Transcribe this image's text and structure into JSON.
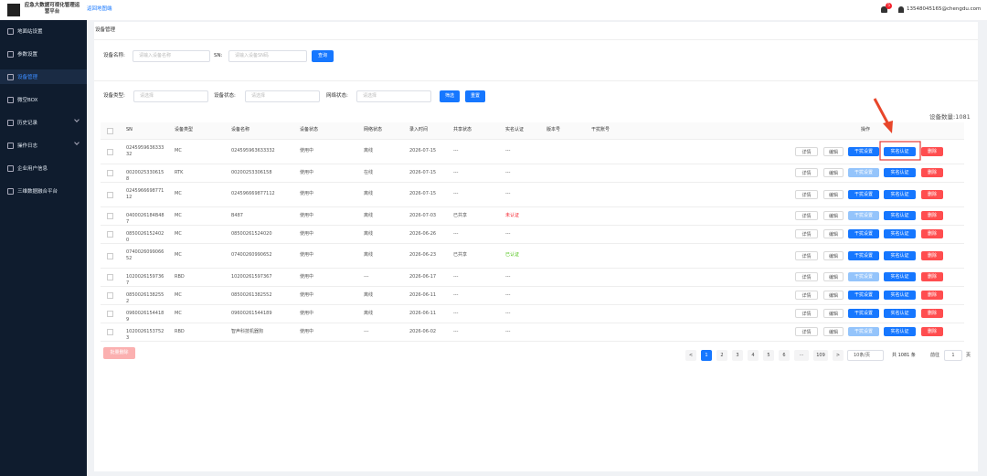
{
  "header": {
    "title": "应急大数据可视化管理运营平台",
    "back_link": "返回地图端",
    "notification_count": "5",
    "user_email": "13548045165@chengdu.com"
  },
  "sidebar": {
    "items": [
      "地面站设置",
      "参数设置",
      "设备管理",
      "微空BOX",
      "历史记录",
      "操作日志",
      "企业用户信息",
      "三维数据融合平台"
    ],
    "active": 2
  },
  "breadcrumb": "设备管理",
  "search": {
    "name_label": "设备名称:",
    "name_placeholder": "请输入设备名称",
    "sn_label": "SN:",
    "sn_placeholder": "请输入设备SN码",
    "button": "查询"
  },
  "filters": {
    "fields": [
      {
        "label": "设备类型:",
        "placeholder": "请选择"
      },
      {
        "label": "设备状态:",
        "placeholder": "请选择"
      },
      {
        "label": "网络状态:",
        "placeholder": "请选择"
      }
    ],
    "filter_button": "筛选",
    "reset_button": "重置"
  },
  "device_count": "设备数量:1081",
  "table": {
    "columns": [
      "SN",
      "设备类型",
      "设备名称",
      "设备状态",
      "网络状态",
      "录入时间",
      "共享状态",
      "实名认证",
      "版本号",
      "干扰账号",
      "操作"
    ],
    "actions": [
      "详情",
      "编辑",
      "干扰设置",
      "实名认证",
      "删除"
    ],
    "rows": [
      {
        "sn": "024595963633332",
        "type": "MC",
        "name": "024595963633332",
        "status": "使用中",
        "network": "离线",
        "created": "2026-07-15",
        "shared": "---",
        "auth": "---"
      },
      {
        "sn": "00200253306158",
        "type": "RTK",
        "name": "00200253306158",
        "status": "使用中",
        "network": "在线",
        "created": "2026-07-15",
        "shared": "---",
        "auth": "---",
        "jam_disabled": true
      },
      {
        "sn": "024596669877112",
        "type": "MC",
        "name": "024596669877112",
        "status": "使用中",
        "network": "离线",
        "created": "2026-07-15",
        "shared": "---",
        "auth": "---"
      },
      {
        "sn": "0400026184B487",
        "type": "MC",
        "name": "B487",
        "status": "使用中",
        "network": "离线",
        "created": "2026-07-03",
        "shared": "已共享",
        "auth": "未认证",
        "auth_color": "#f5222d",
        "jam_disabled": true
      },
      {
        "sn": "08500261524020",
        "type": "MC",
        "name": "08500261524020",
        "status": "使用中",
        "network": "离线",
        "created": "2026-06-26",
        "shared": "---",
        "auth": "---"
      },
      {
        "sn": "074002609906652",
        "type": "MC",
        "name": "07400260990652",
        "status": "使用中",
        "network": "离线",
        "created": "2026-06-23",
        "shared": "已共享",
        "auth": "已认证",
        "auth_color": "#52c41a"
      },
      {
        "sn": "10200261597367",
        "type": "RBD",
        "name": "10200261597367",
        "status": "使用中",
        "network": "---",
        "created": "2026-06-17",
        "shared": "---",
        "auth": "---",
        "jam_disabled": true
      },
      {
        "sn": "08500261382552",
        "type": "MC",
        "name": "08500261382552",
        "status": "使用中",
        "network": "离线",
        "created": "2026-06-11",
        "shared": "---",
        "auth": "---"
      },
      {
        "sn": "09600261544189",
        "type": "MC",
        "name": "09600261544189",
        "status": "使用中",
        "network": "离线",
        "created": "2026-06-11",
        "shared": "---",
        "auth": "---"
      },
      {
        "sn": "10200261537523",
        "type": "RBD",
        "name": "智声科技机器狗",
        "status": "使用中",
        "network": "---",
        "created": "2026-06-02",
        "shared": "---",
        "auth": "---",
        "jam_disabled": true
      }
    ]
  },
  "batch_delete": "批量删除",
  "pagination": {
    "prev": "<",
    "pages": [
      "1",
      "2",
      "3",
      "4",
      "5",
      "6",
      "···",
      "109"
    ],
    "current": 0,
    "next": ">",
    "page_size": "10条/页",
    "total": "共 1081 条",
    "goto_label": "前往",
    "goto_value": "1",
    "goto_unit": "页"
  }
}
